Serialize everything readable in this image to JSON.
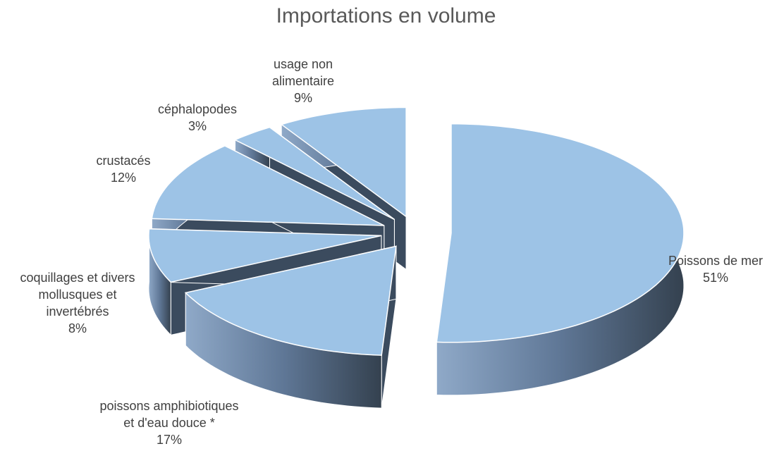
{
  "chart_data": {
    "type": "pie3d",
    "title": "Importations en volume",
    "categories": [
      "Poissons de mer",
      "poissons amphibiotiques et d'eau douce *",
      "coquillages et divers mollusques et invertébrés",
      "crustacés",
      "céphalopodes",
      "usage non alimentaire"
    ],
    "values": [
      51,
      17,
      8,
      12,
      3,
      9
    ],
    "value_labels": [
      "51%",
      "17%",
      "8%",
      "12%",
      "3%",
      "9%"
    ],
    "color": "#9dc3e6"
  }
}
